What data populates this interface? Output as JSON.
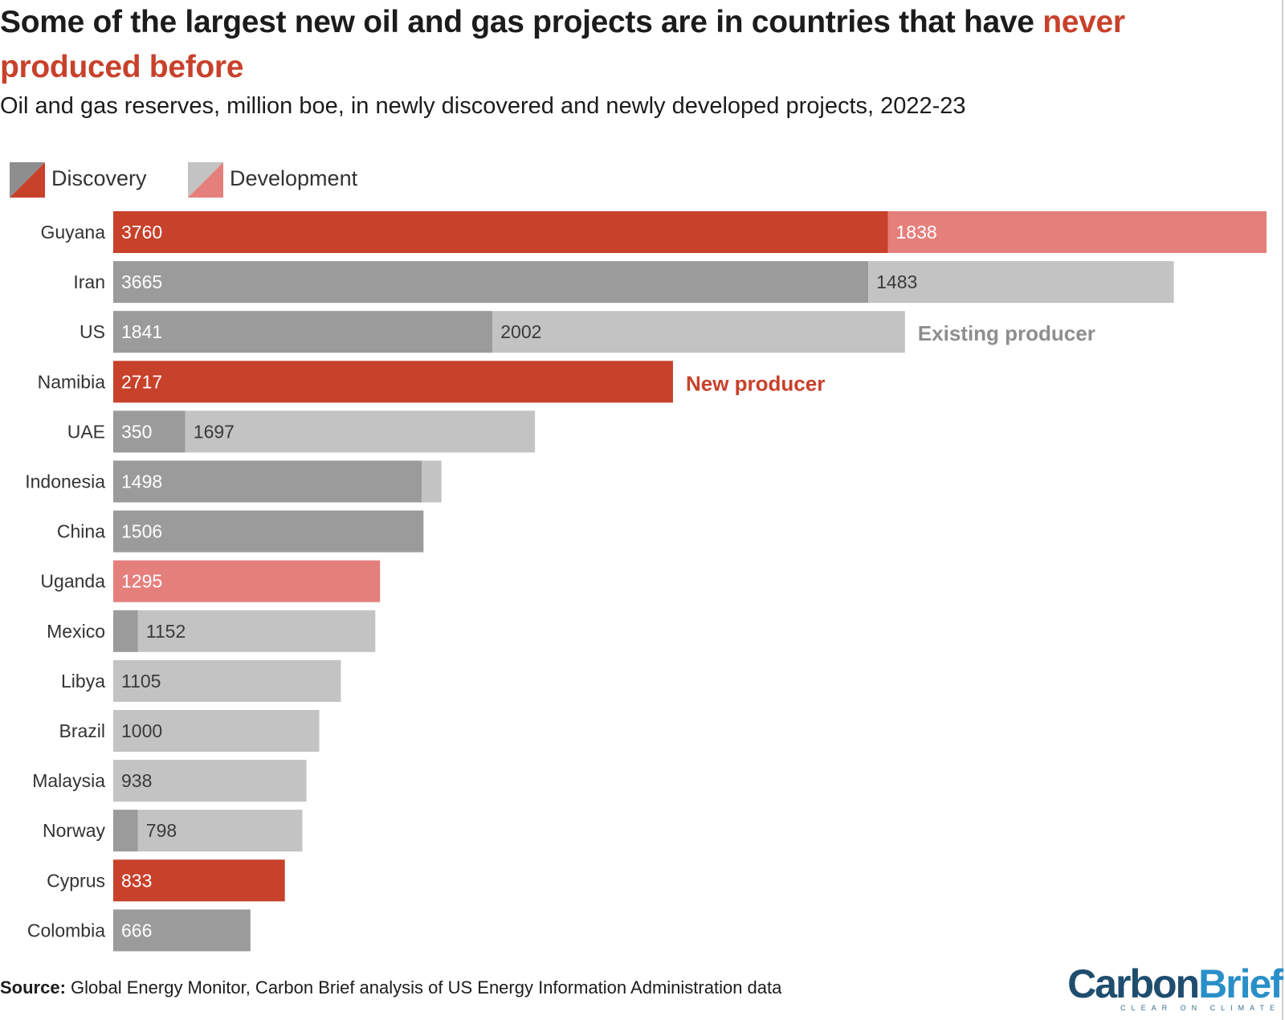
{
  "header": {
    "title_main": "Some of the largest new oil and gas projects are in countries that have ",
    "title_highlight": "never produced before",
    "subtitle": "Oil and gas reserves, million boe, in newly discovered and newly developed projects, 2022-23"
  },
  "legend": {
    "discovery_label": "Discovery",
    "development_label": "Development"
  },
  "colors": {
    "new_discovery": "#c8412b",
    "new_development": "#e57f7c",
    "existing_discovery": "#9b9b9b",
    "existing_development": "#c3c3c3",
    "highlight_text": "#c8412b"
  },
  "chart_data": {
    "type": "bar",
    "orientation": "horizontal",
    "stacked": true,
    "title": "Some of the largest new oil and gas projects are in countries that have never produced before",
    "subtitle": "Oil and gas reserves, million boe, in newly discovered and newly developed projects, 2022-23",
    "unit": "million boe",
    "xlim": [
      0,
      5598
    ],
    "grid": false,
    "legend": "top-left",
    "categories": [
      "Guyana",
      "Iran",
      "US",
      "Namibia",
      "UAE",
      "Indonesia",
      "China",
      "Uganda",
      "Mexico",
      "Libya",
      "Brazil",
      "Malaysia",
      "Norway",
      "Cyprus",
      "Colombia"
    ],
    "producer_status": [
      "new",
      "existing",
      "existing",
      "new",
      "existing",
      "existing",
      "existing",
      "new",
      "existing",
      "existing",
      "existing",
      "existing",
      "existing",
      "new",
      "existing"
    ],
    "series": [
      {
        "name": "Discovery",
        "values": [
          3760,
          3665,
          1841,
          2717,
          350,
          1498,
          1506,
          0,
          120,
          0,
          0,
          0,
          120,
          833,
          666
        ]
      },
      {
        "name": "Development",
        "values": [
          1838,
          1483,
          2002,
          0,
          1697,
          95,
          0,
          1295,
          1152,
          1105,
          1000,
          938,
          798,
          0,
          0
        ]
      }
    ],
    "labels": {
      "discovery": [
        "3760",
        "3665",
        "1841",
        "2717",
        "350",
        "1498",
        "1506",
        "",
        "",
        "",
        "",
        "",
        "",
        "833",
        "666"
      ],
      "development": [
        "1838",
        "1483",
        "2002",
        "",
        "1697",
        "",
        "",
        "1295",
        "1152",
        "1105",
        "1000",
        "938",
        "798",
        "",
        ""
      ]
    },
    "annotations": [
      {
        "text": "Existing producer",
        "category": "US",
        "style": "existing"
      },
      {
        "text": "New producer",
        "category": "Namibia",
        "style": "new"
      }
    ]
  },
  "footer": {
    "source_label": "Source:",
    "source_text": " Global Energy Monitor, Carbon Brief analysis of US Energy Information Administration data",
    "logo_carbon": "Carbon",
    "logo_brief": "Brief",
    "logo_tagline": "CLEAR ON CLIMATE"
  }
}
